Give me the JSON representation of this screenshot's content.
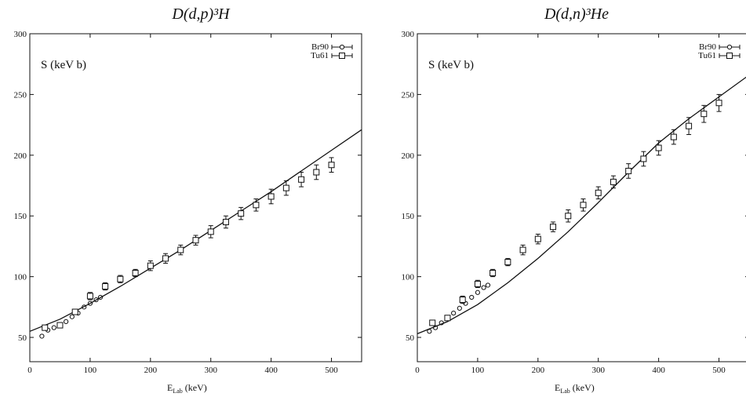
{
  "chart_data": [
    {
      "type": "scatter",
      "title": "D(d,p)³H",
      "ylabel": "S (keV b)",
      "xlabel": "E_Lab (keV)",
      "xlim": [
        0,
        550
      ],
      "ylim": [
        30,
        300
      ],
      "xticks": [
        0,
        100,
        200,
        300,
        400,
        500
      ],
      "yticks": [
        50,
        100,
        150,
        200,
        250,
        300
      ],
      "legend_position": "top-right",
      "series": [
        {
          "name": "Br90",
          "marker": "circle",
          "points": [
            {
              "x": 20,
              "y": 51
            },
            {
              "x": 30,
              "y": 56
            },
            {
              "x": 40,
              "y": 58
            },
            {
              "x": 50,
              "y": 60
            },
            {
              "x": 60,
              "y": 63
            },
            {
              "x": 70,
              "y": 67
            },
            {
              "x": 80,
              "y": 70
            },
            {
              "x": 90,
              "y": 75
            },
            {
              "x": 100,
              "y": 78
            },
            {
              "x": 110,
              "y": 81
            },
            {
              "x": 117,
              "y": 83
            }
          ]
        },
        {
          "name": "Tu61",
          "marker": "square",
          "points": [
            {
              "x": 25,
              "y": 58,
              "e": 2
            },
            {
              "x": 50,
              "y": 60,
              "e": 2
            },
            {
              "x": 75,
              "y": 71,
              "e": 2
            },
            {
              "x": 100,
              "y": 84,
              "e": 3
            },
            {
              "x": 125,
              "y": 92,
              "e": 3
            },
            {
              "x": 150,
              "y": 98,
              "e": 3
            },
            {
              "x": 175,
              "y": 103,
              "e": 3
            },
            {
              "x": 200,
              "y": 109,
              "e": 4
            },
            {
              "x": 225,
              "y": 115,
              "e": 4
            },
            {
              "x": 250,
              "y": 122,
              "e": 4
            },
            {
              "x": 275,
              "y": 130,
              "e": 4
            },
            {
              "x": 300,
              "y": 137,
              "e": 5
            },
            {
              "x": 325,
              "y": 145,
              "e": 5
            },
            {
              "x": 350,
              "y": 152,
              "e": 5
            },
            {
              "x": 375,
              "y": 159,
              "e": 5
            },
            {
              "x": 400,
              "y": 166,
              "e": 6
            },
            {
              "x": 425,
              "y": 173,
              "e": 6
            },
            {
              "x": 450,
              "y": 180,
              "e": 6
            },
            {
              "x": 475,
              "y": 186,
              "e": 6
            },
            {
              "x": 500,
              "y": 192,
              "e": 6
            }
          ]
        },
        {
          "curve": "line",
          "points": [
            {
              "x": 0,
              "y": 55
            },
            {
              "x": 50,
              "y": 65
            },
            {
              "x": 100,
              "y": 78
            },
            {
              "x": 150,
              "y": 92
            },
            {
              "x": 200,
              "y": 107
            },
            {
              "x": 250,
              "y": 122
            },
            {
              "x": 300,
              "y": 138
            },
            {
              "x": 350,
              "y": 154
            },
            {
              "x": 400,
              "y": 170
            },
            {
              "x": 450,
              "y": 187
            },
            {
              "x": 500,
              "y": 204
            },
            {
              "x": 550,
              "y": 221
            }
          ]
        }
      ]
    },
    {
      "type": "scatter",
      "title": "D(d,n)³He",
      "ylabel": "S (keV b)",
      "xlabel": "E_Lab (keV)",
      "xlim": [
        0,
        550
      ],
      "ylim": [
        30,
        300
      ],
      "xticks": [
        0,
        100,
        200,
        300,
        400,
        500
      ],
      "yticks": [
        50,
        100,
        150,
        200,
        250,
        300
      ],
      "legend_position": "top-right",
      "series": [
        {
          "name": "Br90",
          "marker": "circle",
          "points": [
            {
              "x": 20,
              "y": 55
            },
            {
              "x": 30,
              "y": 58
            },
            {
              "x": 40,
              "y": 62
            },
            {
              "x": 50,
              "y": 66
            },
            {
              "x": 60,
              "y": 70
            },
            {
              "x": 70,
              "y": 74
            },
            {
              "x": 80,
              "y": 78
            },
            {
              "x": 90,
              "y": 83
            },
            {
              "x": 100,
              "y": 87
            },
            {
              "x": 110,
              "y": 91
            },
            {
              "x": 117,
              "y": 93
            }
          ]
        },
        {
          "name": "Tu61",
          "marker": "square",
          "points": [
            {
              "x": 25,
              "y": 62,
              "e": 2
            },
            {
              "x": 50,
              "y": 66,
              "e": 2
            },
            {
              "x": 75,
              "y": 81,
              "e": 3
            },
            {
              "x": 100,
              "y": 94,
              "e": 3
            },
            {
              "x": 125,
              "y": 103,
              "e": 3
            },
            {
              "x": 150,
              "y": 112,
              "e": 3
            },
            {
              "x": 175,
              "y": 122,
              "e": 4
            },
            {
              "x": 200,
              "y": 131,
              "e": 4
            },
            {
              "x": 225,
              "y": 141,
              "e": 4
            },
            {
              "x": 250,
              "y": 150,
              "e": 5
            },
            {
              "x": 275,
              "y": 159,
              "e": 5
            },
            {
              "x": 300,
              "y": 169,
              "e": 5
            },
            {
              "x": 325,
              "y": 178,
              "e": 5
            },
            {
              "x": 350,
              "y": 187,
              "e": 6
            },
            {
              "x": 375,
              "y": 197,
              "e": 6
            },
            {
              "x": 400,
              "y": 206,
              "e": 6
            },
            {
              "x": 425,
              "y": 215,
              "e": 6
            },
            {
              "x": 450,
              "y": 224,
              "e": 7
            },
            {
              "x": 475,
              "y": 234,
              "e": 7
            },
            {
              "x": 500,
              "y": 243,
              "e": 7
            }
          ]
        },
        {
          "curve": "line",
          "points": [
            {
              "x": 0,
              "y": 53
            },
            {
              "x": 50,
              "y": 63
            },
            {
              "x": 100,
              "y": 77
            },
            {
              "x": 150,
              "y": 95
            },
            {
              "x": 200,
              "y": 115
            },
            {
              "x": 250,
              "y": 137
            },
            {
              "x": 300,
              "y": 161
            },
            {
              "x": 350,
              "y": 186
            },
            {
              "x": 400,
              "y": 210
            },
            {
              "x": 450,
              "y": 230
            },
            {
              "x": 500,
              "y": 248
            },
            {
              "x": 550,
              "y": 266
            }
          ]
        }
      ]
    }
  ]
}
